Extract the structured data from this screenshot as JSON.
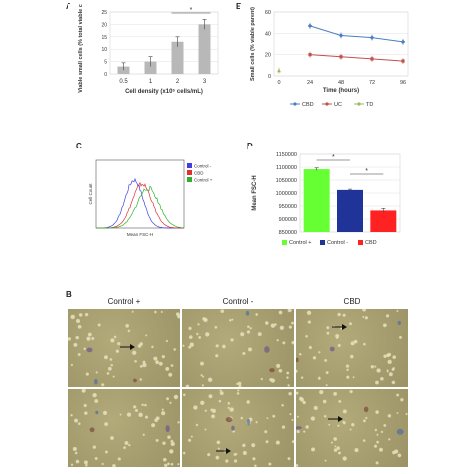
{
  "panels": {
    "A": {
      "letter": "A"
    },
    "E": {
      "letter": "E"
    },
    "C": {
      "letter": "C"
    },
    "D": {
      "letter": "D"
    },
    "B": {
      "letter": "B"
    }
  },
  "chart_data": [
    {
      "id": "A",
      "type": "bar",
      "categories": [
        "0.5",
        "1",
        "2",
        "3"
      ],
      "values": [
        3,
        5,
        13,
        20
      ],
      "errors": [
        1.5,
        2,
        2,
        2
      ],
      "ylim": [
        0,
        25
      ],
      "yticks": [
        "0",
        "5",
        "10",
        "15",
        "20",
        "25"
      ],
      "ylabel": "Viable small cells (% total viable cells)",
      "xlabel": "Cell density (x10⁵ cells/mL)",
      "annotation": "*",
      "color": "#b8b8b8"
    },
    {
      "id": "E",
      "type": "line",
      "x": [
        0,
        24,
        48,
        72,
        96
      ],
      "xticks": [
        "0",
        "24",
        "48",
        "72",
        "96"
      ],
      "ylim": [
        0,
        60
      ],
      "yticks": [
        "0",
        "20",
        "40",
        "60"
      ],
      "ylabel": "Small cells (% viable parent)",
      "xlabel": "Time (hours)",
      "series": [
        {
          "name": "CBD",
          "x": [
            24,
            48,
            72,
            96
          ],
          "values": [
            47,
            38,
            36,
            32
          ],
          "color": "#4a7fc1"
        },
        {
          "name": "UC",
          "x": [
            24,
            48,
            72,
            96
          ],
          "values": [
            20,
            18,
            16,
            14
          ],
          "color": "#c0504d"
        },
        {
          "name": "TD",
          "x": [
            0
          ],
          "values": [
            5
          ],
          "color": "#9bbb59"
        }
      ]
    },
    {
      "id": "C",
      "type": "area",
      "xlabel": "Mean FSC-H",
      "ylabel": "Cell Count",
      "legend": [
        {
          "name": "Control -",
          "color": "#4040e0"
        },
        {
          "name": "CBD",
          "color": "#e03030"
        },
        {
          "name": "Control +",
          "color": "#30b030"
        }
      ]
    },
    {
      "id": "D",
      "type": "bar",
      "categories": [
        "Control +",
        "Control -",
        "CBD"
      ],
      "values": [
        1092000,
        1012000,
        933000
      ],
      "errors": [
        5000,
        3000,
        8000
      ],
      "colors": [
        "#66ff33",
        "#1f3399",
        "#ff2222"
      ],
      "ylim": [
        850000,
        1150000
      ],
      "yticks": [
        "850000",
        "900000",
        "950000",
        "1000000",
        "1050000",
        "1100000",
        "1150000"
      ],
      "ylabel": "Mean FSC-H",
      "annotations": [
        "*",
        "*"
      ]
    }
  ],
  "micrographs": {
    "headers": [
      "Control +",
      "Control -",
      "CBD"
    ]
  }
}
